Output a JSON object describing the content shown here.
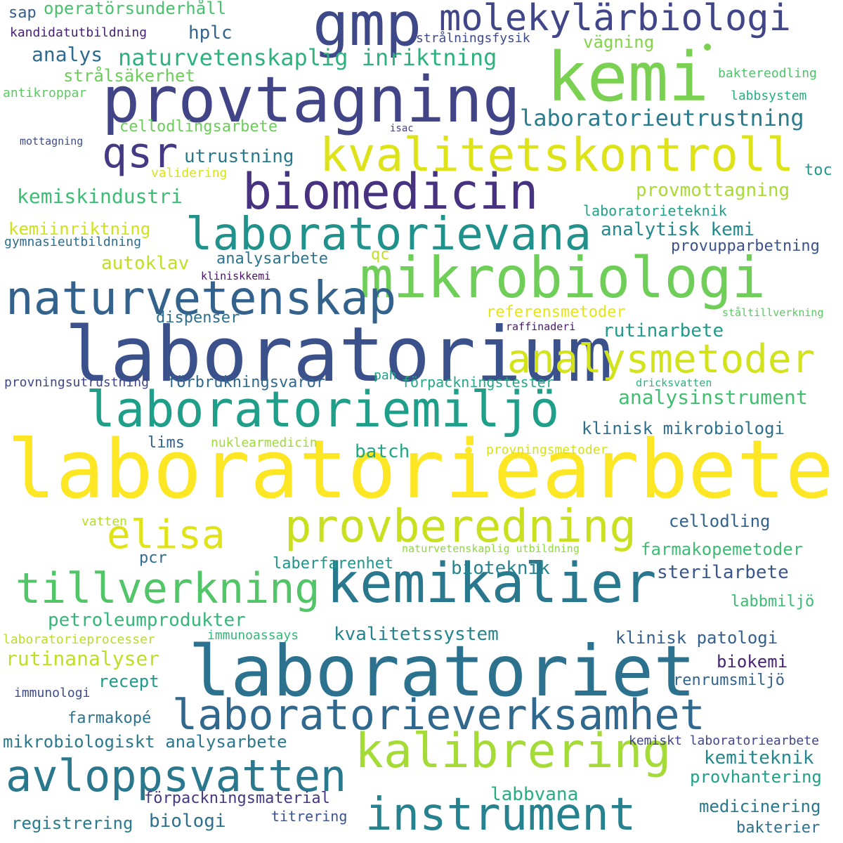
{
  "words": [
    {
      "text": "laboratoriearbete",
      "color": "#fde725"
    },
    {
      "text": "laboratorium",
      "color": "#3b518b"
    },
    {
      "text": "laboratoriet",
      "color": "#2c728e"
    },
    {
      "text": "kemi",
      "color": "#7ad151"
    },
    {
      "text": "provtagning",
      "color": "#414487"
    },
    {
      "text": "mikrobiologi",
      "color": "#6ece58"
    },
    {
      "text": "kemikalier",
      "color": "#2a788e"
    },
    {
      "text": "instrument",
      "color": "#26828e"
    },
    {
      "text": "kalibrering",
      "color": "#a5db36"
    },
    {
      "text": "laboratoriemiljö",
      "color": "#1f9e89"
    },
    {
      "text": "gmp",
      "color": "#3e4989"
    },
    {
      "text": "laboratorieverksamhet",
      "color": "#31688e"
    },
    {
      "text": "biomedicin",
      "color": "#46327e"
    },
    {
      "text": "naturvetenskap",
      "color": "#33638d"
    },
    {
      "text": "laboratorievana",
      "color": "#21918c"
    },
    {
      "text": "kvalitetskontroll",
      "color": "#dde318"
    },
    {
      "text": "avloppsvatten",
      "color": "#2a788e"
    },
    {
      "text": "analysmetoder",
      "color": "#d2e21b"
    },
    {
      "text": "provberedning",
      "color": "#c8e020"
    },
    {
      "text": "tillverkning",
      "color": "#52c569"
    },
    {
      "text": "molekylärbiologi",
      "color": "#404688"
    },
    {
      "text": "qsr",
      "color": "#443a83"
    },
    {
      "text": "elisa",
      "color": "#dfe318"
    },
    {
      "text": "laboratorieutrustning",
      "color": "#297b8e"
    },
    {
      "text": "naturvetenskaplig inriktning",
      "color": "#2db27d"
    },
    {
      "text": "analysinstrument",
      "color": "#42be71"
    },
    {
      "text": "kemiskindustri",
      "color": "#3dbc74"
    },
    {
      "text": "analytisk kemi",
      "color": "#23888e"
    },
    {
      "text": "utrustning",
      "color": "#29798e"
    },
    {
      "text": "hplc",
      "color": "#32648e"
    },
    {
      "text": "analys",
      "color": "#306a8e"
    },
    {
      "text": "petroleumprodukter",
      "color": "#35b779"
    },
    {
      "text": "kvalitetssystem",
      "color": "#25848e"
    },
    {
      "text": "rutinanalyser",
      "color": "#bddf26"
    },
    {
      "text": "mikrobiologiskt analysarbete",
      "color": "#2a778e"
    },
    {
      "text": "provmottagning",
      "color": "#a8db34"
    },
    {
      "text": "klinisk mikrobiologi",
      "color": "#2e6f8e"
    },
    {
      "text": "sterilarbete",
      "color": "#39568c"
    },
    {
      "text": "bioteknik",
      "color": "#25838e"
    },
    {
      "text": "farmakopemetoder",
      "color": "#3dbc74"
    },
    {
      "text": "rutinarbete",
      "color": "#1e9c89"
    },
    {
      "text": "cellodling",
      "color": "#33638d"
    },
    {
      "text": "klinisk patologi",
      "color": "#355f8d"
    },
    {
      "text": "kemiteknik",
      "color": "#24878e"
    },
    {
      "text": "provhantering",
      "color": "#1fa188"
    },
    {
      "text": "medicinering",
      "color": "#2a788e"
    },
    {
      "text": "laberfarenhet",
      "color": "#1f958b"
    },
    {
      "text": "labbvana",
      "color": "#28ae80"
    },
    {
      "text": "biologi",
      "color": "#2d708e"
    },
    {
      "text": "registrering",
      "color": "#297b8e"
    },
    {
      "text": "renrumsmiljö",
      "color": "#33638d"
    },
    {
      "text": "biokemi",
      "color": "#482475"
    },
    {
      "text": "recept",
      "color": "#1f9a8a"
    },
    {
      "text": "farmakopé",
      "color": "#2c718e"
    },
    {
      "text": "förpackningsmaterial",
      "color": "#453882"
    },
    {
      "text": "bakterier",
      "color": "#2d708e"
    },
    {
      "text": "operatörsunderhåll",
      "color": "#4ac16d"
    },
    {
      "text": "strålsäkerhet",
      "color": "#6ccd5a"
    },
    {
      "text": "cellodlingsarbete",
      "color": "#6ccd5a"
    },
    {
      "text": "kemiinriktning",
      "color": "#d0e11c"
    },
    {
      "text": "autoklav",
      "color": "#c2df23"
    },
    {
      "text": "analysarbete",
      "color": "#2c728e"
    },
    {
      "text": "dispenser",
      "color": "#2e6e8e"
    },
    {
      "text": "referensmetoder",
      "color": "#e5e419"
    },
    {
      "text": "förbrukningsvaror",
      "color": "#31688e"
    },
    {
      "text": "lims",
      "color": "#33638d"
    },
    {
      "text": "batch",
      "color": "#22a785"
    },
    {
      "text": "pcr",
      "color": "#2f6b8e"
    },
    {
      "text": "labbmiljö",
      "color": "#3dbc74"
    },
    {
      "text": "provupparbetning",
      "color": "#3b528b"
    },
    {
      "text": "laboratorieteknik",
      "color": "#1fa088"
    },
    {
      "text": "vägning",
      "color": "#84d44b"
    },
    {
      "text": "toc",
      "color": "#1f988b"
    },
    {
      "text": "sap",
      "color": "#365d8d"
    },
    {
      "text": "kandidatutbildning",
      "color": "#482173"
    },
    {
      "text": "strålningsfysik",
      "color": "#3e4a89"
    },
    {
      "text": "baktereodling",
      "color": "#4ec36b"
    },
    {
      "text": "labbsystem",
      "color": "#27ad81"
    },
    {
      "text": "antikroppar",
      "color": "#5ec962"
    },
    {
      "text": "isac",
      "color": "#424086"
    },
    {
      "text": "mottagning",
      "color": "#3e4c8a"
    },
    {
      "text": "validering",
      "color": "#d8e219"
    },
    {
      "text": "gymnasieutbildning",
      "color": "#2e6d8e"
    },
    {
      "text": "kliniskkemi",
      "color": "#471063"
    },
    {
      "text": "qc",
      "color": "#c0df25"
    },
    {
      "text": "ståltillverkning",
      "color": "#5ac864"
    },
    {
      "text": "raffinaderi",
      "color": "#481a6c"
    },
    {
      "text": "provningsutrustning",
      "color": "#404688"
    },
    {
      "text": "pah",
      "color": "#1fa188"
    },
    {
      "text": "förpackningstester",
      "color": "#22a884"
    },
    {
      "text": "dricksvatten",
      "color": "#2db27d"
    },
    {
      "text": "nuklearmedicin",
      "color": "#a0da39"
    },
    {
      "text": "provningsmetoder",
      "color": "#d5e21a"
    },
    {
      "text": "vatten",
      "color": "#b5de2b"
    },
    {
      "text": "naturvetenskaplig utbildning",
      "color": "#90d743"
    },
    {
      "text": "laboratorieprocesser",
      "color": "#b8de29"
    },
    {
      "text": "immunoassays",
      "color": "#35b779"
    },
    {
      "text": "immunologi",
      "color": "#3e4c8a"
    },
    {
      "text": "kemiskt laboratoriearbete",
      "color": "#404588"
    },
    {
      "text": "titrering",
      "color": "#3b528b"
    }
  ],
  "dots": [
    {
      "color": "#fde725"
    },
    {
      "color": "#7ad151"
    }
  ]
}
